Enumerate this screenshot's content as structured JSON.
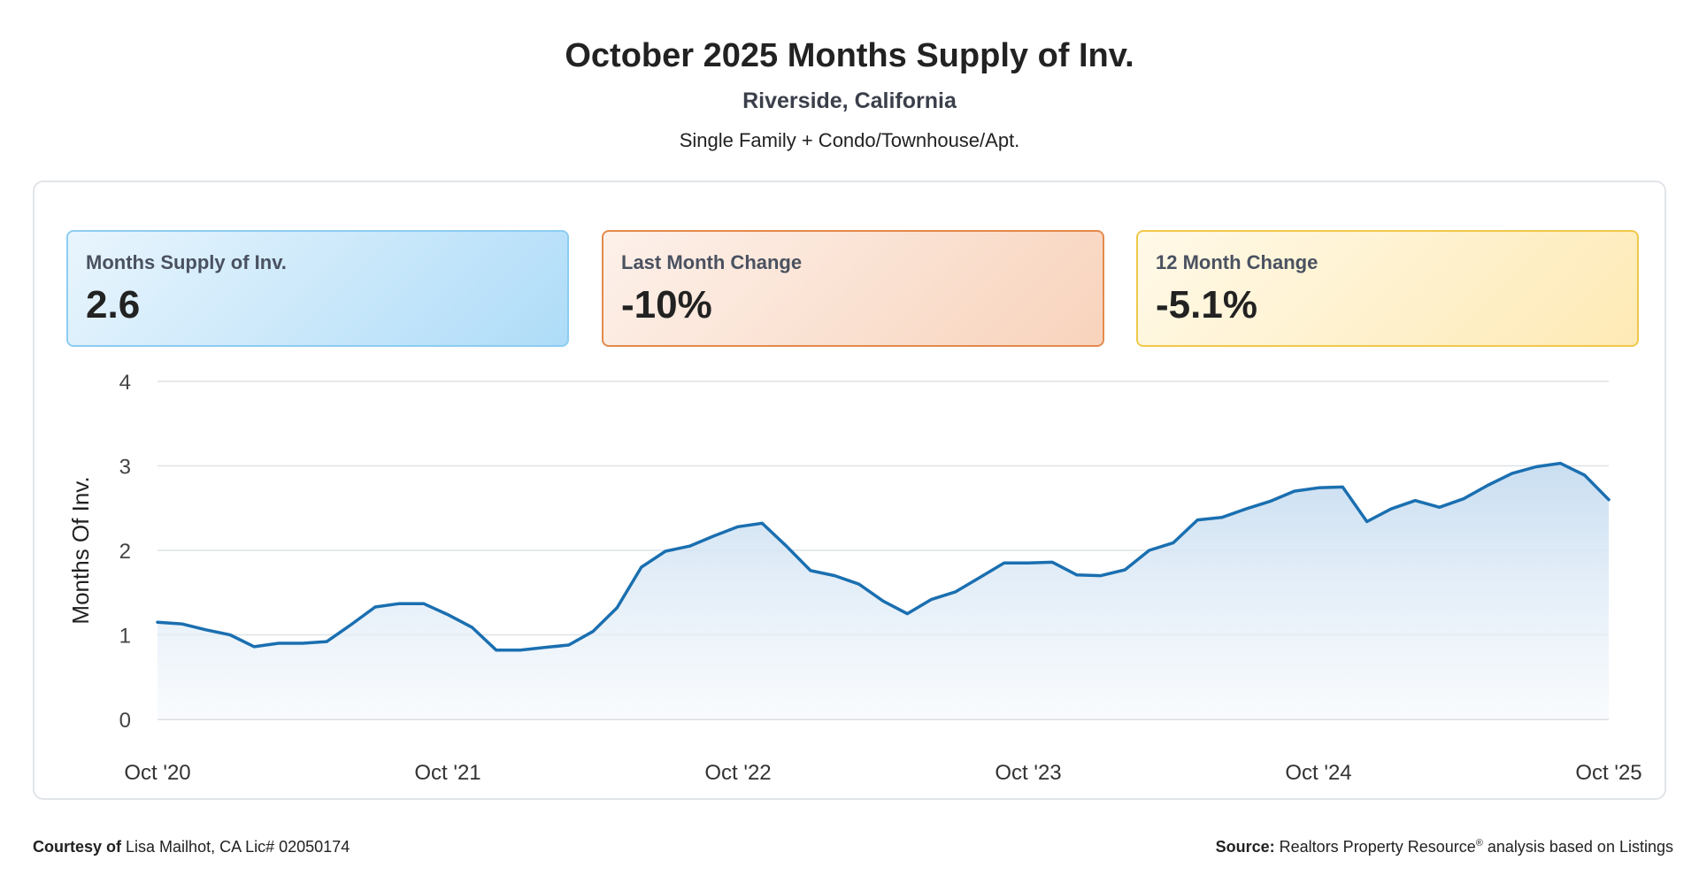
{
  "header": {
    "title": "October 2025 Months Supply of Inv.",
    "location": "Riverside, California",
    "property_types": "Single Family + Condo/Townhouse/Apt."
  },
  "cards": [
    {
      "label": "Months Supply of Inv.",
      "value": "2.6",
      "color": "#aedcf8"
    },
    {
      "label": "Last Month Change",
      "value": "-10%",
      "color": "#f8d3bc"
    },
    {
      "label": "12 Month Change",
      "value": "-5.1%",
      "color": "#feeab5"
    }
  ],
  "chart_data": {
    "type": "area",
    "title": "",
    "ylabel": "Months Of Inv.",
    "xlabel": "",
    "ylim": [
      0,
      4
    ],
    "yticks": [
      "0",
      "1",
      "2",
      "3",
      "4"
    ],
    "xticks": [
      "Oct '20",
      "Oct '21",
      "Oct '22",
      "Oct '23",
      "Oct '24",
      "Oct '25"
    ],
    "grid": true,
    "line_color": "#1a6fb0",
    "fill_color": "#cfe2f3",
    "series": [
      {
        "values": [
          1.15,
          1.13,
          1.06,
          1.0,
          0.86,
          0.9,
          0.9,
          0.92,
          1.12,
          1.33,
          1.37,
          1.37,
          1.24,
          1.09,
          0.82,
          0.82,
          0.85,
          0.88,
          1.04,
          1.32,
          1.8,
          1.99,
          2.05,
          2.17,
          2.28,
          2.32,
          2.05,
          1.76,
          1.7,
          1.6,
          1.4,
          1.25,
          1.42,
          1.51,
          1.68,
          1.85,
          1.85,
          1.86,
          1.71,
          1.7,
          1.77,
          2.0,
          2.09,
          2.36,
          2.39,
          2.49,
          2.58,
          2.7,
          2.74,
          2.75,
          2.34,
          2.49,
          2.59,
          2.51,
          2.61,
          2.77,
          2.91,
          2.99,
          3.03,
          2.89,
          2.6
        ]
      }
    ]
  },
  "footer": {
    "courtesy_label": "Courtesy of",
    "courtesy_text": "Lisa Mailhot, CA Lic# 02050174",
    "source_label": "Source:",
    "source_text_a": "Realtors Property Resource",
    "source_reg": "®",
    "source_text_b": " analysis based on Listings"
  }
}
